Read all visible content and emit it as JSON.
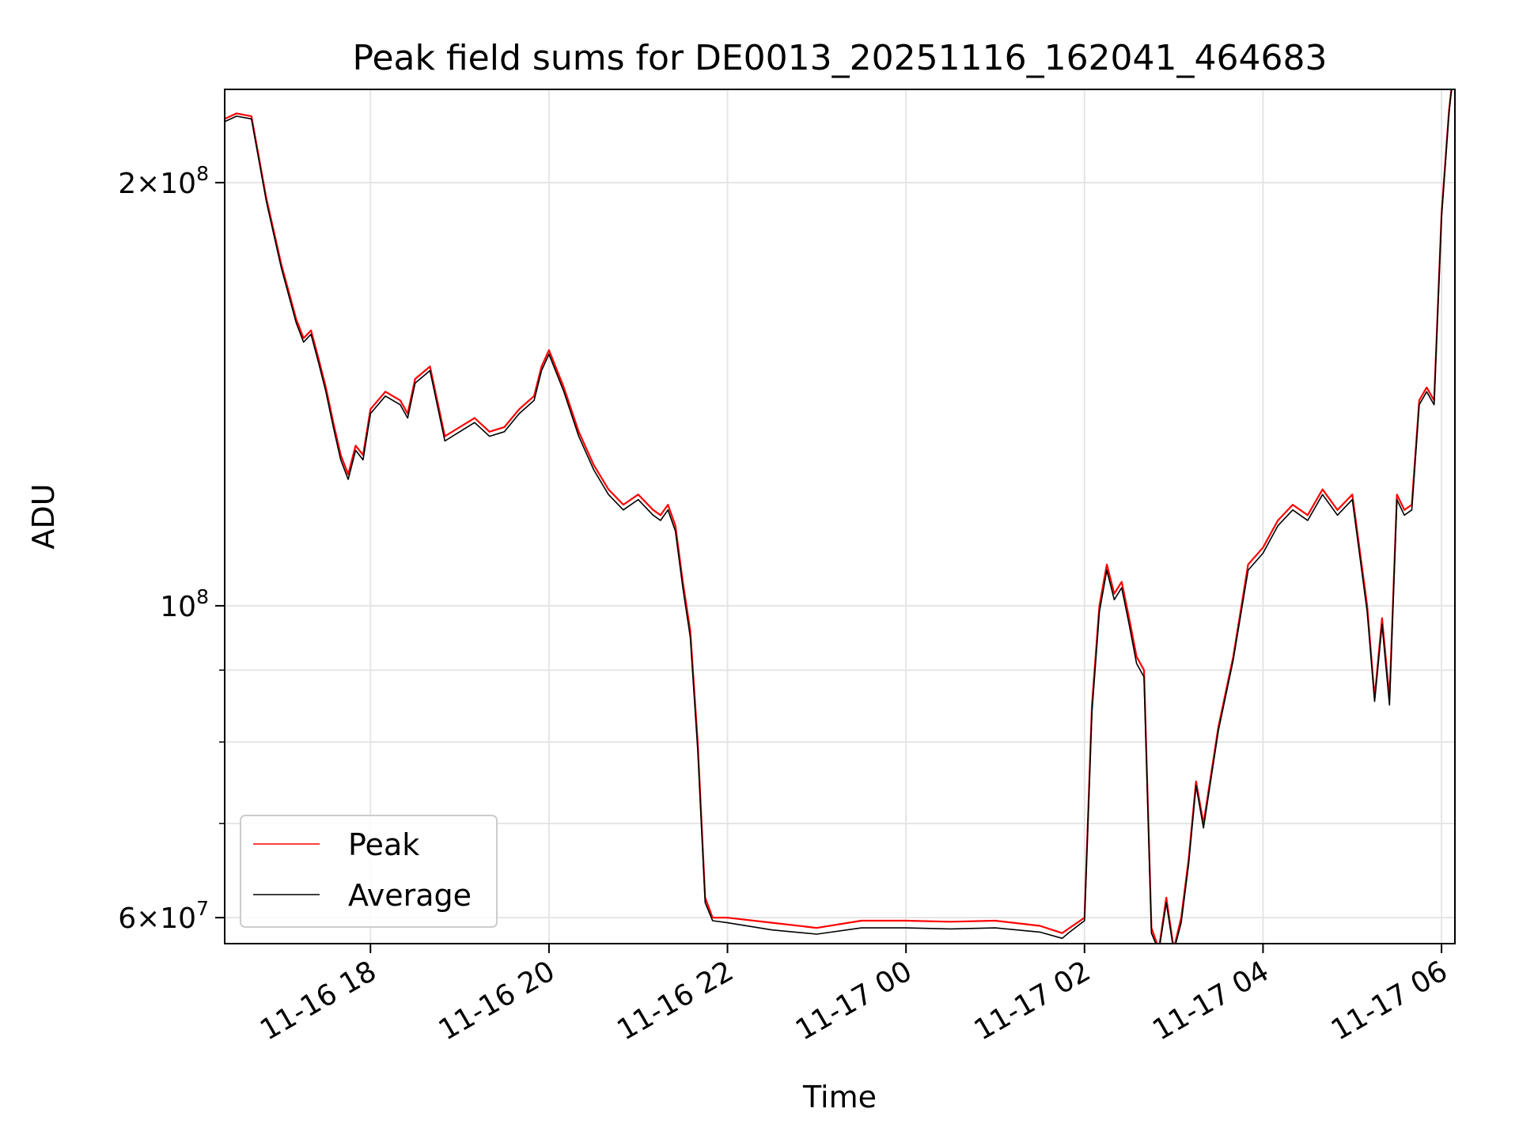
{
  "chart_data": {
    "type": "line",
    "title": "Peak field sums for DE0013_20251116_162041_464683",
    "xlabel": "Time",
    "ylabel": "ADU",
    "y_scale": "log",
    "ylim": [
      57500000,
      233000000
    ],
    "xlim": [
      "2025-11-16 16:22",
      "2025-11-17 06:09"
    ],
    "grid": true,
    "legend_position": "lower-left",
    "x_ticks": [
      {
        "value": "2025-11-16 18:00",
        "label": "11-16 18"
      },
      {
        "value": "2025-11-16 20:00",
        "label": "11-16 20"
      },
      {
        "value": "2025-11-16 22:00",
        "label": "11-16 22"
      },
      {
        "value": "2025-11-17 00:00",
        "label": "11-17 00"
      },
      {
        "value": "2025-11-17 02:00",
        "label": "11-17 02"
      },
      {
        "value": "2025-11-17 04:00",
        "label": "11-17 04"
      },
      {
        "value": "2025-11-17 06:00",
        "label": "11-17 06"
      }
    ],
    "y_ticks": [
      {
        "value": 200000000,
        "mantissa": "2",
        "exponent": "8"
      },
      {
        "value": 100000000,
        "mantissa": "",
        "exponent": "8"
      },
      {
        "value": 60000000,
        "mantissa": "6",
        "exponent": "7"
      }
    ],
    "y_minor_ticks": [
      70000000,
      80000000,
      90000000
    ],
    "x": [
      "2025-11-16 16:22",
      "2025-11-16 16:30",
      "2025-11-16 16:40",
      "2025-11-16 16:50",
      "2025-11-16 17:00",
      "2025-11-16 17:10",
      "2025-11-16 17:15",
      "2025-11-16 17:20",
      "2025-11-16 17:25",
      "2025-11-16 17:30",
      "2025-11-16 17:35",
      "2025-11-16 17:40",
      "2025-11-16 17:45",
      "2025-11-16 17:50",
      "2025-11-16 17:55",
      "2025-11-16 18:00",
      "2025-11-16 18:10",
      "2025-11-16 18:20",
      "2025-11-16 18:25",
      "2025-11-16 18:30",
      "2025-11-16 18:40",
      "2025-11-16 18:50",
      "2025-11-16 19:00",
      "2025-11-16 19:10",
      "2025-11-16 19:20",
      "2025-11-16 19:30",
      "2025-11-16 19:40",
      "2025-11-16 19:50",
      "2025-11-16 19:55",
      "2025-11-16 20:00",
      "2025-11-16 20:10",
      "2025-11-16 20:20",
      "2025-11-16 20:30",
      "2025-11-16 20:40",
      "2025-11-16 20:50",
      "2025-11-16 21:00",
      "2025-11-16 21:10",
      "2025-11-16 21:15",
      "2025-11-16 21:20",
      "2025-11-16 21:25",
      "2025-11-16 21:30",
      "2025-11-16 21:35",
      "2025-11-16 21:40",
      "2025-11-16 21:45",
      "2025-11-16 21:50",
      "2025-11-16 22:00",
      "2025-11-16 22:30",
      "2025-11-16 23:00",
      "2025-11-16 23:30",
      "2025-11-17 00:00",
      "2025-11-17 00:30",
      "2025-11-17 01:00",
      "2025-11-17 01:30",
      "2025-11-17 01:45",
      "2025-11-17 01:50",
      "2025-11-17 02:00",
      "2025-11-17 02:05",
      "2025-11-17 02:10",
      "2025-11-17 02:15",
      "2025-11-17 02:20",
      "2025-11-17 02:25",
      "2025-11-17 02:30",
      "2025-11-17 02:35",
      "2025-11-17 02:40",
      "2025-11-17 02:45",
      "2025-11-17 02:50",
      "2025-11-17 02:55",
      "2025-11-17 03:00",
      "2025-11-17 03:05",
      "2025-11-17 03:10",
      "2025-11-17 03:15",
      "2025-11-17 03:20",
      "2025-11-17 03:30",
      "2025-11-17 03:40",
      "2025-11-17 03:50",
      "2025-11-17 04:00",
      "2025-11-17 04:10",
      "2025-11-17 04:20",
      "2025-11-17 04:30",
      "2025-11-17 04:40",
      "2025-11-17 04:50",
      "2025-11-17 05:00",
      "2025-11-17 05:10",
      "2025-11-17 05:15",
      "2025-11-17 05:20",
      "2025-11-17 05:25",
      "2025-11-17 05:30",
      "2025-11-17 05:35",
      "2025-11-17 05:40",
      "2025-11-17 05:45",
      "2025-11-17 05:50",
      "2025-11-17 05:55",
      "2025-11-17 06:00",
      "2025-11-17 06:05",
      "2025-11-17 06:08"
    ],
    "series": [
      {
        "name": "Peak",
        "color": "#ff0000",
        "values": [
          222000000,
          224000000,
          223000000,
          195000000,
          175000000,
          160000000,
          155000000,
          157000000,
          150000000,
          143000000,
          135000000,
          128000000,
          124000000,
          130000000,
          128000000,
          138000000,
          142000000,
          140000000,
          137000000,
          145000000,
          148000000,
          132000000,
          134000000,
          136000000,
          133000000,
          134000000,
          138000000,
          141000000,
          148000000,
          152000000,
          143000000,
          133000000,
          126000000,
          121000000,
          118000000,
          120000000,
          117000000,
          116000000,
          118000000,
          114000000,
          104000000,
          96000000,
          80000000,
          62000000,
          60000000,
          60000000,
          59500000,
          59000000,
          59700000,
          59700000,
          59600000,
          59700000,
          59200000,
          58500000,
          59000000,
          60000000,
          85000000,
          100000000,
          107000000,
          102000000,
          104000000,
          98000000,
          92000000,
          90000000,
          59000000,
          57000000,
          62000000,
          57000000,
          60000000,
          66000000,
          75000000,
          70000000,
          82000000,
          92000000,
          107000000,
          110000000,
          115000000,
          118000000,
          116000000,
          121000000,
          117000000,
          120000000,
          100000000,
          86000000,
          98000000,
          86000000,
          120000000,
          117000000,
          118000000,
          140000000,
          143000000,
          140000000,
          190000000,
          225000000,
          240000000
        ]
      },
      {
        "name": "Average",
        "color": "#000000",
        "values": [
          221000000,
          223000000,
          222000000,
          194000000,
          174000000,
          159000000,
          154000000,
          156000000,
          149000000,
          142000000,
          134000000,
          127000000,
          123000000,
          129000000,
          127000000,
          137000000,
          141000000,
          139000000,
          136000000,
          144000000,
          147000000,
          131000000,
          133000000,
          135000000,
          132000000,
          133000000,
          137000000,
          140000000,
          147000000,
          151000000,
          142000000,
          132000000,
          125000000,
          120000000,
          117000000,
          119000000,
          116000000,
          115000000,
          117000000,
          113000000,
          103000000,
          95000000,
          79000000,
          61500000,
          59700000,
          59500000,
          58800000,
          58400000,
          59000000,
          59000000,
          58900000,
          59000000,
          58600000,
          58000000,
          58600000,
          59700000,
          84000000,
          99000000,
          106000000,
          101000000,
          103000000,
          97000000,
          91000000,
          89000000,
          58500000,
          56800000,
          61500000,
          56800000,
          59500000,
          65500000,
          74500000,
          69500000,
          81500000,
          91500000,
          106000000,
          109000000,
          114000000,
          117000000,
          115000000,
          120000000,
          116000000,
          119000000,
          99000000,
          85500000,
          97000000,
          85000000,
          119000000,
          116000000,
          117000000,
          139000000,
          142000000,
          139000000,
          189000000,
          224000000,
          240000000
        ]
      }
    ]
  }
}
